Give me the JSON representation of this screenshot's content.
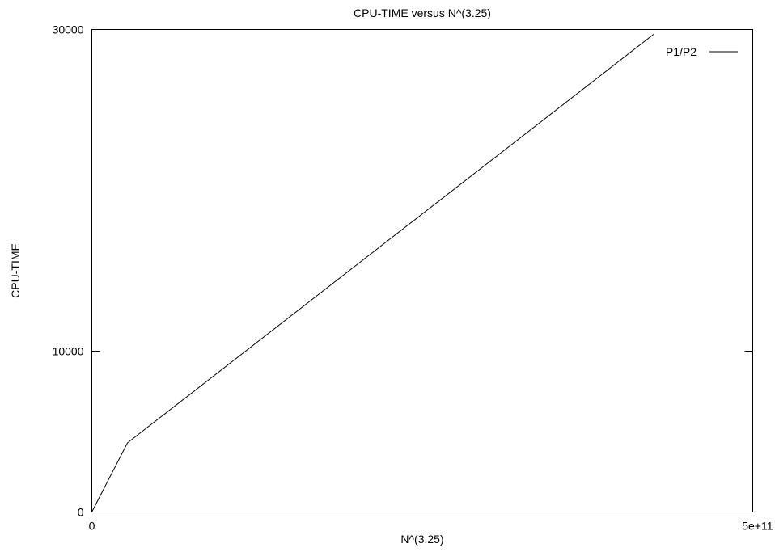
{
  "chart_data": {
    "type": "line",
    "title": "CPU-TIME versus N^(3.25)",
    "xlabel": "N^(3.25)",
    "ylabel": "CPU-TIME",
    "xlim": [
      0,
      500000000000
    ],
    "ylim": [
      0,
      30000
    ],
    "x_ticks": [
      {
        "value": 0,
        "label": "0"
      },
      {
        "value": 500000000000,
        "label": "5e+11"
      }
    ],
    "y_ticks": [
      {
        "value": 0,
        "label": "0"
      },
      {
        "value": 10000,
        "label": "10000"
      },
      {
        "value": 30000,
        "label": "30000"
      }
    ],
    "grid": false,
    "legend_position": "top-right",
    "series": [
      {
        "name": "P1/P2",
        "color": "#000000",
        "x": [
          0,
          27000000000,
          425000000000
        ],
        "y": [
          0,
          4300,
          29700
        ]
      }
    ]
  }
}
